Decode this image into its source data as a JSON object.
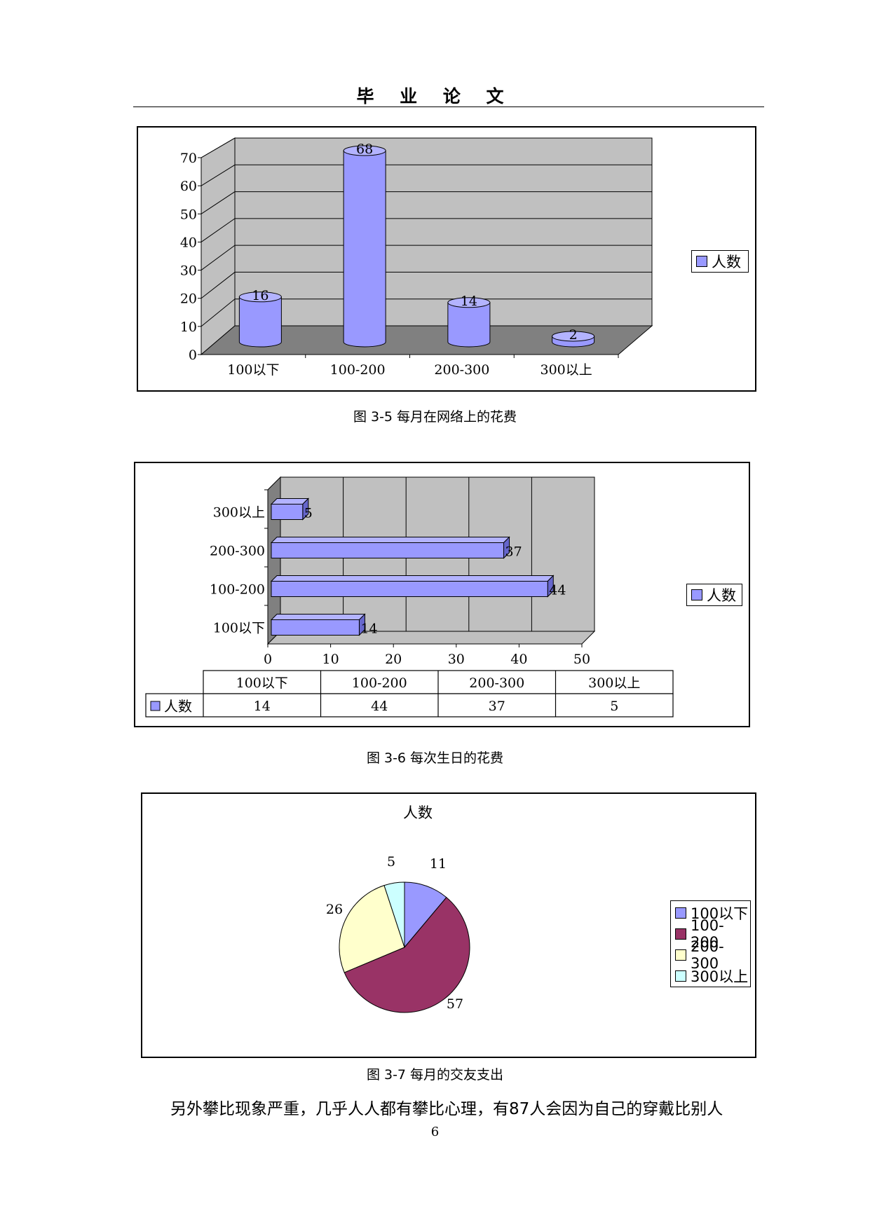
{
  "header": {
    "title": "毕 业 论 文"
  },
  "figures": {
    "fig1": {
      "caption": "图 3-5 每月在网络上的花费",
      "legend": "人数"
    },
    "fig2": {
      "caption": "图 3-6 每次生日的花费",
      "legend": "人数",
      "table_header": [
        "100以下",
        "100-200",
        "200-300",
        "300以上"
      ],
      "table_row_label": "人数",
      "table_values": [
        "14",
        "44",
        "37",
        "5"
      ]
    },
    "fig3": {
      "caption": "图 3-7 每月的交友支出",
      "title": "人数",
      "legend": [
        "100以下",
        "100-200",
        "200-300",
        "300以上"
      ]
    }
  },
  "chart_data": [
    {
      "type": "bar",
      "categories": [
        "100以下",
        "100-200",
        "200-300",
        "300以上"
      ],
      "series": [
        {
          "name": "人数",
          "values": [
            16,
            68,
            14,
            2
          ]
        }
      ],
      "ylim": [
        0,
        70
      ],
      "yticks": [
        0,
        10,
        20,
        30,
        40,
        50,
        60,
        70
      ],
      "legend_position": "right",
      "color": "#9999ff"
    },
    {
      "type": "bar",
      "orientation": "horizontal",
      "categories": [
        "100以下",
        "100-200",
        "200-300",
        "300以上"
      ],
      "series": [
        {
          "name": "人数",
          "values": [
            14,
            44,
            37,
            5
          ]
        }
      ],
      "xlim": [
        0,
        50
      ],
      "xticks": [
        0,
        10,
        20,
        30,
        40,
        50
      ],
      "legend_position": "right",
      "color": "#9999ff"
    },
    {
      "type": "pie",
      "title": "人数",
      "categories": [
        "100以下",
        "100-200",
        "200-300",
        "300以上"
      ],
      "values": [
        11,
        57,
        26,
        5
      ],
      "colors": [
        "#9999ff",
        "#993366",
        "#ffffcc",
        "#ccffff"
      ],
      "legend_position": "right"
    }
  ],
  "body": {
    "paragraph": "另外攀比现象严重，几乎人人都有攀比心理，有87人会因为自己的穿戴比别人"
  },
  "footer": {
    "page_number": "6"
  }
}
